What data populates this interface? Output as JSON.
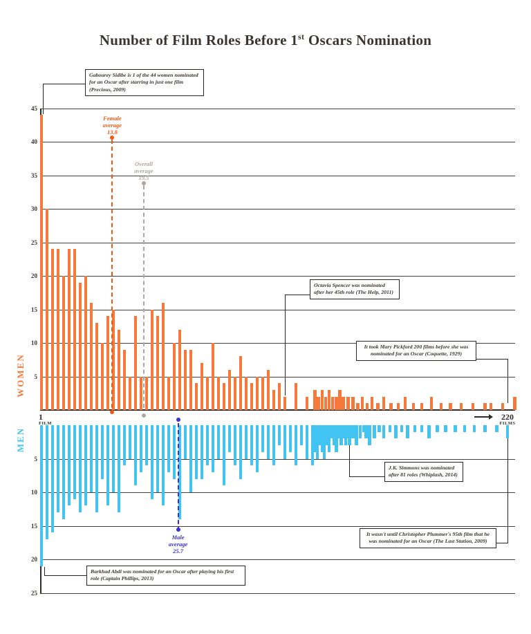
{
  "title": {
    "pre": "Number of Film Roles Before 1",
    "sup": "st",
    "post": " Oscars Nomination"
  },
  "chart_data": {
    "type": "bar",
    "title": "Number of Film Roles Before 1st Oscars Nomination",
    "x_axis": {
      "min": 1,
      "max": 220,
      "start_value": "1",
      "start_unit": "FILM",
      "end_value": "220",
      "end_unit": "FILMS"
    },
    "women_axis": {
      "label": "WOMEN",
      "color": "#F5793B",
      "max": 45,
      "ticks": [
        5,
        10,
        15,
        20,
        25,
        30,
        35,
        40,
        45
      ]
    },
    "men_axis": {
      "label": "MEN",
      "color": "#41C4F1",
      "max": 25,
      "ticks": [
        5,
        10,
        15,
        20,
        25
      ]
    },
    "series": [
      {
        "name": "Women",
        "orientation": "up",
        "color": "#F5793B",
        "points": [
          [
            1,
            44
          ],
          [
            2,
            30
          ],
          [
            3,
            24
          ],
          [
            4,
            24
          ],
          [
            5,
            20
          ],
          [
            6,
            24
          ],
          [
            7,
            24
          ],
          [
            8,
            19
          ],
          [
            9,
            20
          ],
          [
            10,
            16
          ],
          [
            11,
            13
          ],
          [
            12,
            10
          ],
          [
            13,
            14
          ],
          [
            14,
            15
          ],
          [
            15,
            12
          ],
          [
            16,
            9
          ],
          [
            17,
            5
          ],
          [
            18,
            14
          ],
          [
            19,
            5
          ],
          [
            20,
            5
          ],
          [
            21,
            15
          ],
          [
            22,
            14
          ],
          [
            23,
            16
          ],
          [
            24,
            5
          ],
          [
            25,
            10
          ],
          [
            26,
            12
          ],
          [
            27,
            9
          ],
          [
            28,
            9
          ],
          [
            29,
            4
          ],
          [
            30,
            7
          ],
          [
            31,
            5
          ],
          [
            32,
            10
          ],
          [
            33,
            5
          ],
          [
            34,
            4
          ],
          [
            35,
            6
          ],
          [
            36,
            5
          ],
          [
            37,
            8
          ],
          [
            38,
            5
          ],
          [
            39,
            4
          ],
          [
            40,
            5
          ],
          [
            41,
            5
          ],
          [
            42,
            6
          ],
          [
            43,
            3
          ],
          [
            44,
            4
          ],
          [
            45,
            2
          ],
          [
            47,
            4
          ],
          [
            49,
            2
          ],
          [
            52,
            3
          ],
          [
            55,
            2
          ],
          [
            58,
            3
          ],
          [
            61,
            2
          ],
          [
            64,
            3
          ],
          [
            67,
            2
          ],
          [
            70,
            2
          ],
          [
            73,
            3
          ],
          [
            76,
            2
          ],
          [
            80,
            2
          ],
          [
            84,
            2
          ],
          [
            88,
            1
          ],
          [
            92,
            2
          ],
          [
            96,
            1
          ],
          [
            100,
            2
          ],
          [
            105,
            1
          ],
          [
            110,
            2
          ],
          [
            116,
            1
          ],
          [
            122,
            1
          ],
          [
            128,
            2
          ],
          [
            135,
            1
          ],
          [
            142,
            1
          ],
          [
            150,
            2
          ],
          [
            158,
            1
          ],
          [
            166,
            1
          ],
          [
            175,
            1
          ],
          [
            185,
            1
          ],
          [
            195,
            1
          ],
          [
            200,
            1
          ],
          [
            210,
            1
          ],
          [
            220,
            2
          ]
        ]
      },
      {
        "name": "Men",
        "orientation": "down",
        "color": "#41C4F1",
        "points": [
          [
            1,
            21
          ],
          [
            2,
            17
          ],
          [
            3,
            16
          ],
          [
            4,
            13
          ],
          [
            5,
            14
          ],
          [
            6,
            12
          ],
          [
            7,
            11
          ],
          [
            8,
            13
          ],
          [
            9,
            12
          ],
          [
            10,
            10
          ],
          [
            11,
            13
          ],
          [
            12,
            8
          ],
          [
            13,
            12
          ],
          [
            14,
            10
          ],
          [
            15,
            13
          ],
          [
            16,
            6
          ],
          [
            17,
            5
          ],
          [
            18,
            9
          ],
          [
            19,
            7
          ],
          [
            20,
            6
          ],
          [
            21,
            11
          ],
          [
            22,
            10
          ],
          [
            23,
            12
          ],
          [
            24,
            7
          ],
          [
            25,
            8
          ],
          [
            26,
            14
          ],
          [
            27,
            5
          ],
          [
            28,
            10
          ],
          [
            29,
            8
          ],
          [
            30,
            8
          ],
          [
            31,
            6
          ],
          [
            32,
            7
          ],
          [
            33,
            5
          ],
          [
            34,
            9
          ],
          [
            35,
            4
          ],
          [
            36,
            6
          ],
          [
            37,
            8
          ],
          [
            38,
            5
          ],
          [
            39,
            6
          ],
          [
            40,
            7
          ],
          [
            41,
            4
          ],
          [
            42,
            5
          ],
          [
            43,
            6
          ],
          [
            44,
            3
          ],
          [
            45,
            5
          ],
          [
            46,
            4
          ],
          [
            47,
            6
          ],
          [
            48,
            3
          ],
          [
            49,
            5
          ],
          [
            50,
            6
          ],
          [
            52,
            4
          ],
          [
            54,
            5
          ],
          [
            56,
            3
          ],
          [
            58,
            4
          ],
          [
            60,
            5
          ],
          [
            62,
            3
          ],
          [
            64,
            4
          ],
          [
            66,
            2
          ],
          [
            68,
            3
          ],
          [
            70,
            4
          ],
          [
            72,
            2
          ],
          [
            74,
            3
          ],
          [
            76,
            2
          ],
          [
            78,
            3
          ],
          [
            80,
            2
          ],
          [
            81,
            3
          ],
          [
            84,
            2
          ],
          [
            87,
            3
          ],
          [
            90,
            2
          ],
          [
            93,
            1
          ],
          [
            95,
            2
          ],
          [
            98,
            3
          ],
          [
            102,
            2
          ],
          [
            106,
            1
          ],
          [
            110,
            2
          ],
          [
            115,
            1
          ],
          [
            120,
            2
          ],
          [
            125,
            1
          ],
          [
            130,
            2
          ],
          [
            136,
            1
          ],
          [
            142,
            1
          ],
          [
            148,
            2
          ],
          [
            155,
            1
          ],
          [
            162,
            1
          ],
          [
            170,
            1
          ],
          [
            178,
            1
          ],
          [
            186,
            1
          ],
          [
            195,
            1
          ],
          [
            205,
            1
          ],
          [
            214,
            2
          ]
        ]
      }
    ],
    "averages": [
      {
        "name": "female",
        "label": "Female\naverage\n13.8",
        "value": 13.8,
        "color": "#ED5A16"
      },
      {
        "name": "overall",
        "label": "Overall\naverage\n19.5",
        "value": 19.5,
        "color": "#AFA8A2"
      },
      {
        "name": "male",
        "label": "Male\naverage\n25.7",
        "value": 25.7,
        "color": "#3B33CE"
      }
    ],
    "annotations": [
      {
        "id": "gabourey",
        "text": "Gabourey Sidibe is 1 of the 44 women nominated for an Oscar after starring in just one film (Precious, 2009)"
      },
      {
        "id": "octavia",
        "text": "Octavia Spencer was nominated after her 45th role (The Help, 2011)"
      },
      {
        "id": "pickford",
        "text": "It took Mary Pickford 200 films before she was nominated for an Oscar (Coquette, 1929)"
      },
      {
        "id": "simmons",
        "text": "J.K. Simmons was nominated after 81 roles (Whiplash, 2014)"
      },
      {
        "id": "plummer",
        "text": "It wasn't until Christopher Plummer's 95th film that he was nominated for an Oscar (The Last Station, 2009)"
      },
      {
        "id": "abdi",
        "text": "Barkhad Abdi was nominated for an Oscar after playing his first role (Captain Phillips, 2013)"
      }
    ]
  }
}
